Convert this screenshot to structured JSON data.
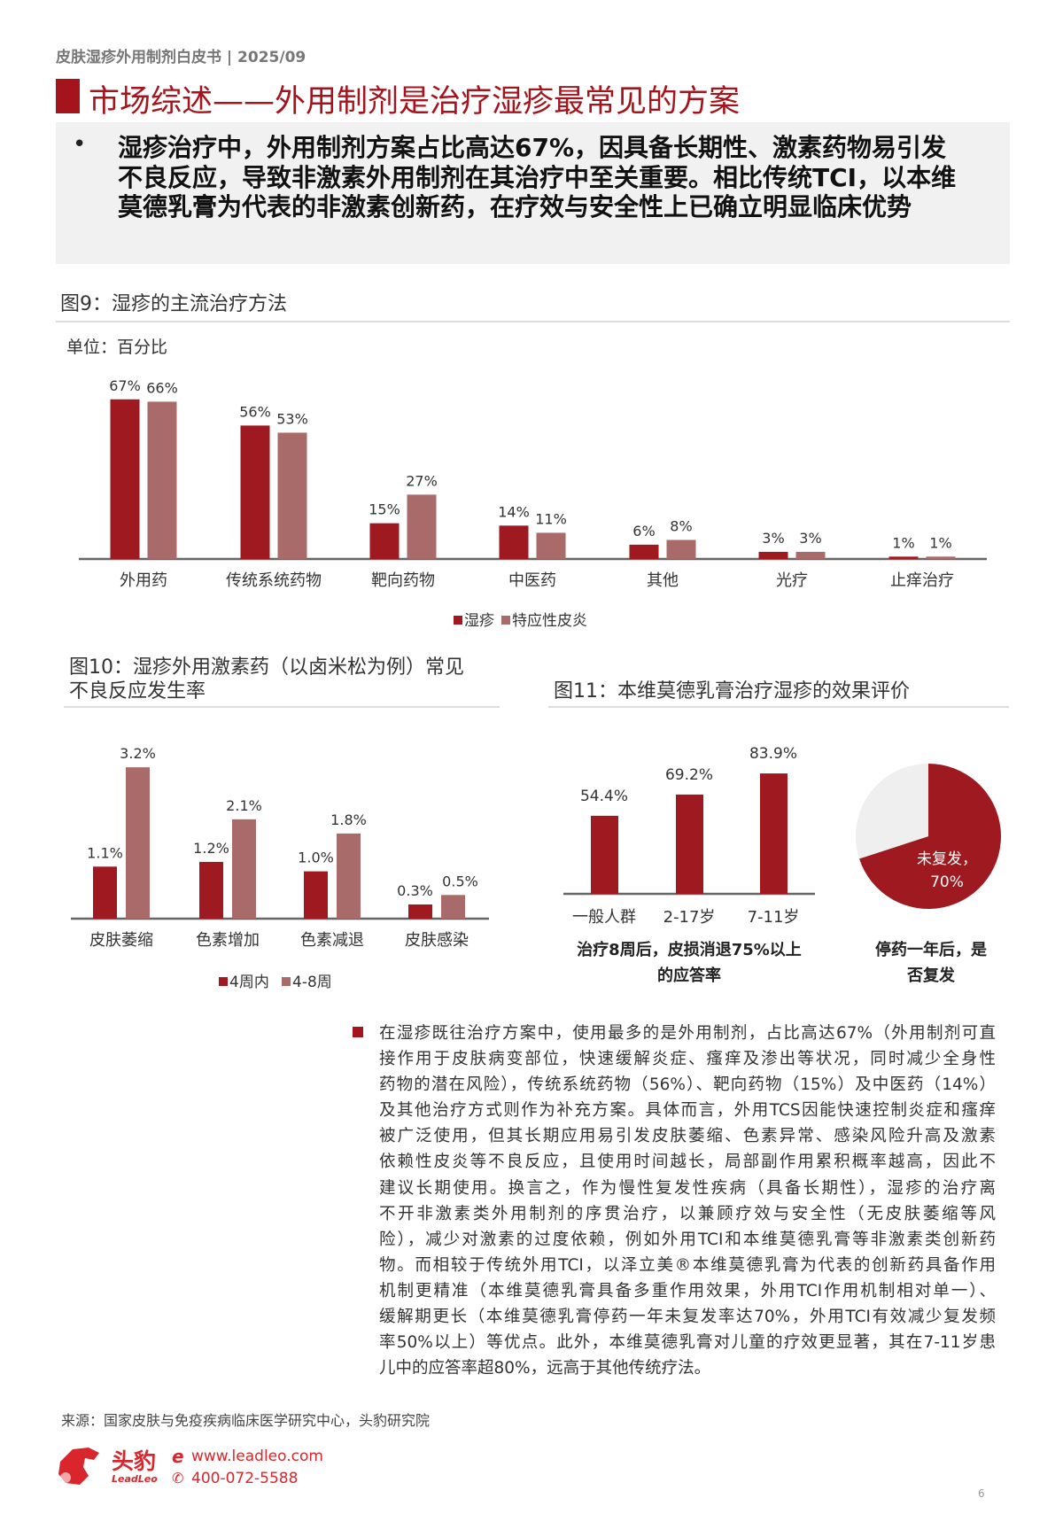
{
  "header": {
    "doc_title": "皮肤湿疹外用制剂白皮书 | 2025/09",
    "title": "市场综述——外用制剂是治疗湿疹最常见的方案"
  },
  "summary": {
    "bullet": "•",
    "text": "湿疹治疗中，外用制剂方案占比高达67%，因具备长期性、激素药物易引发不良反应，导致非激素外用制剂在其治疗中至关重要。相比传统TCI，以本维莫德乳膏为代表的非激素创新药，在疗效与安全性上已确立明显临床优势"
  },
  "fig9": {
    "title": "图9：湿疹的主流治疗方法",
    "unit": "单位：百分比"
  },
  "fig10": {
    "title_line1": "图10：湿疹外用激素药（以卤米松为例）常见",
    "title_line2": "不良反应发生率"
  },
  "fig11": {
    "title": "图11：本维莫德乳膏治疗湿疹的效果评价",
    "bar_caption_line1": "治疗8周后，皮损消退75%以上",
    "bar_caption_line2": "的应答率",
    "pie_caption_line1": "停药一年后，是",
    "pie_caption_line2": "否复发"
  },
  "colors": {
    "primary": "#9e1a20",
    "secondary": "#a96b6a",
    "pie_other": "#efefef",
    "title_red": "#a5141c"
  },
  "chart_data": [
    {
      "type": "bar",
      "unit": "单位：百分比",
      "categories": [
        "外用药",
        "传统系统药物",
        "靶向药物",
        "中医药",
        "其他",
        "光疗",
        "止痒治疗"
      ],
      "series": [
        {
          "name": "湿疹",
          "values": [
            67,
            56,
            15,
            14,
            6,
            3,
            1
          ],
          "labels": [
            "67%",
            "56%",
            "15%",
            "14%",
            "6%",
            "3%",
            "1%"
          ]
        },
        {
          "name": "特应性皮炎",
          "values": [
            66,
            53,
            27,
            11,
            8,
            3,
            1
          ],
          "labels": [
            "66%",
            "53%",
            "27%",
            "11%",
            "8%",
            "3%",
            "1%"
          ]
        }
      ],
      "legend": "bottom"
    },
    {
      "type": "bar",
      "categories": [
        "皮肤萎缩",
        "色素增加",
        "色素减退",
        "皮肤感染"
      ],
      "series": [
        {
          "name": "4周内",
          "values": [
            1.1,
            1.2,
            1.0,
            0.3
          ],
          "labels": [
            "1.1%",
            "1.2%",
            "1.0%",
            "0.3%"
          ]
        },
        {
          "name": "4-8周",
          "values": [
            3.2,
            2.1,
            1.8,
            0.5
          ],
          "labels": [
            "3.2%",
            "2.1%",
            "1.8%",
            "0.5%"
          ]
        }
      ],
      "legend": "bottom"
    },
    {
      "type": "bar",
      "categories": [
        "一般人群",
        "2-17岁",
        "7-11岁"
      ],
      "values": [
        54.4,
        69.2,
        83.9
      ],
      "labels": [
        "54.4%",
        "69.2%",
        "83.9%"
      ],
      "xlabel": "治疗8周后，皮损消退75%以上的应答率"
    },
    {
      "type": "pie",
      "slices": [
        {
          "name": "未复发",
          "value": 70,
          "label_line1": "未复发，",
          "label_line2": "70%"
        },
        {
          "name": "复发",
          "value": 30
        }
      ],
      "xlabel": "停药一年后，是否复发"
    }
  ],
  "body": {
    "lines": [
      "在湿疹既往治疗方案中，使用最多的是外用制剂，占比高达67%（外用制剂可直",
      "接作用于皮肤病变部位，快速缓解炎症、瘙痒及渗出等状况，同时减少全身性",
      "药物的潜在风险），传统系统药物（56%）、靶向药物（15%）及中医药（14%）",
      "及其他治疗方式则作为补充方案。具体而言，外用TCS因能快速控制炎症和瘙痒",
      "被广泛使用，但其长期应用易引发皮肤萎缩、色素异常、感染风险升高及激素",
      "依赖性皮炎等不良反应，且使用时间越长，局部副作用累积概率越高，因此不",
      "建议长期使用。换言之，作为慢性复发性疾病（具备长期性），湿疹的治疗离",
      "不开非激素类外用制剂的序贯治疗，以兼顾疗效与安全性（无皮肤萎缩等风",
      "险），减少对激素的过度依赖，例如外用TCI和本维莫德乳膏等非激素类创新药",
      "物。而相较于传统外用TCI，以泽立美®本维莫德乳膏为代表的创新药具备作用",
      "机制更精准（本维莫德乳膏具备多重作用效果，外用TCI作用机制相对单一）、",
      "缓解期更长（本维莫德乳膏停药一年未复发率达70%，外用TCI有效减少复发频",
      "率50%以上）等优点。此外，本维莫德乳膏对儿童的疗效更显著，其在7-11岁患",
      "儿中的应答率超80%，远高于其他传统疗法。"
    ]
  },
  "footer": {
    "source": "来源：国家皮肤与免疫疾病临床医学研究中心，头豹研究院",
    "brand": "头豹",
    "brand_en": "LeadLeo",
    "website": "www.leadleo.com",
    "phone": "400-072-5588",
    "page": "6"
  }
}
